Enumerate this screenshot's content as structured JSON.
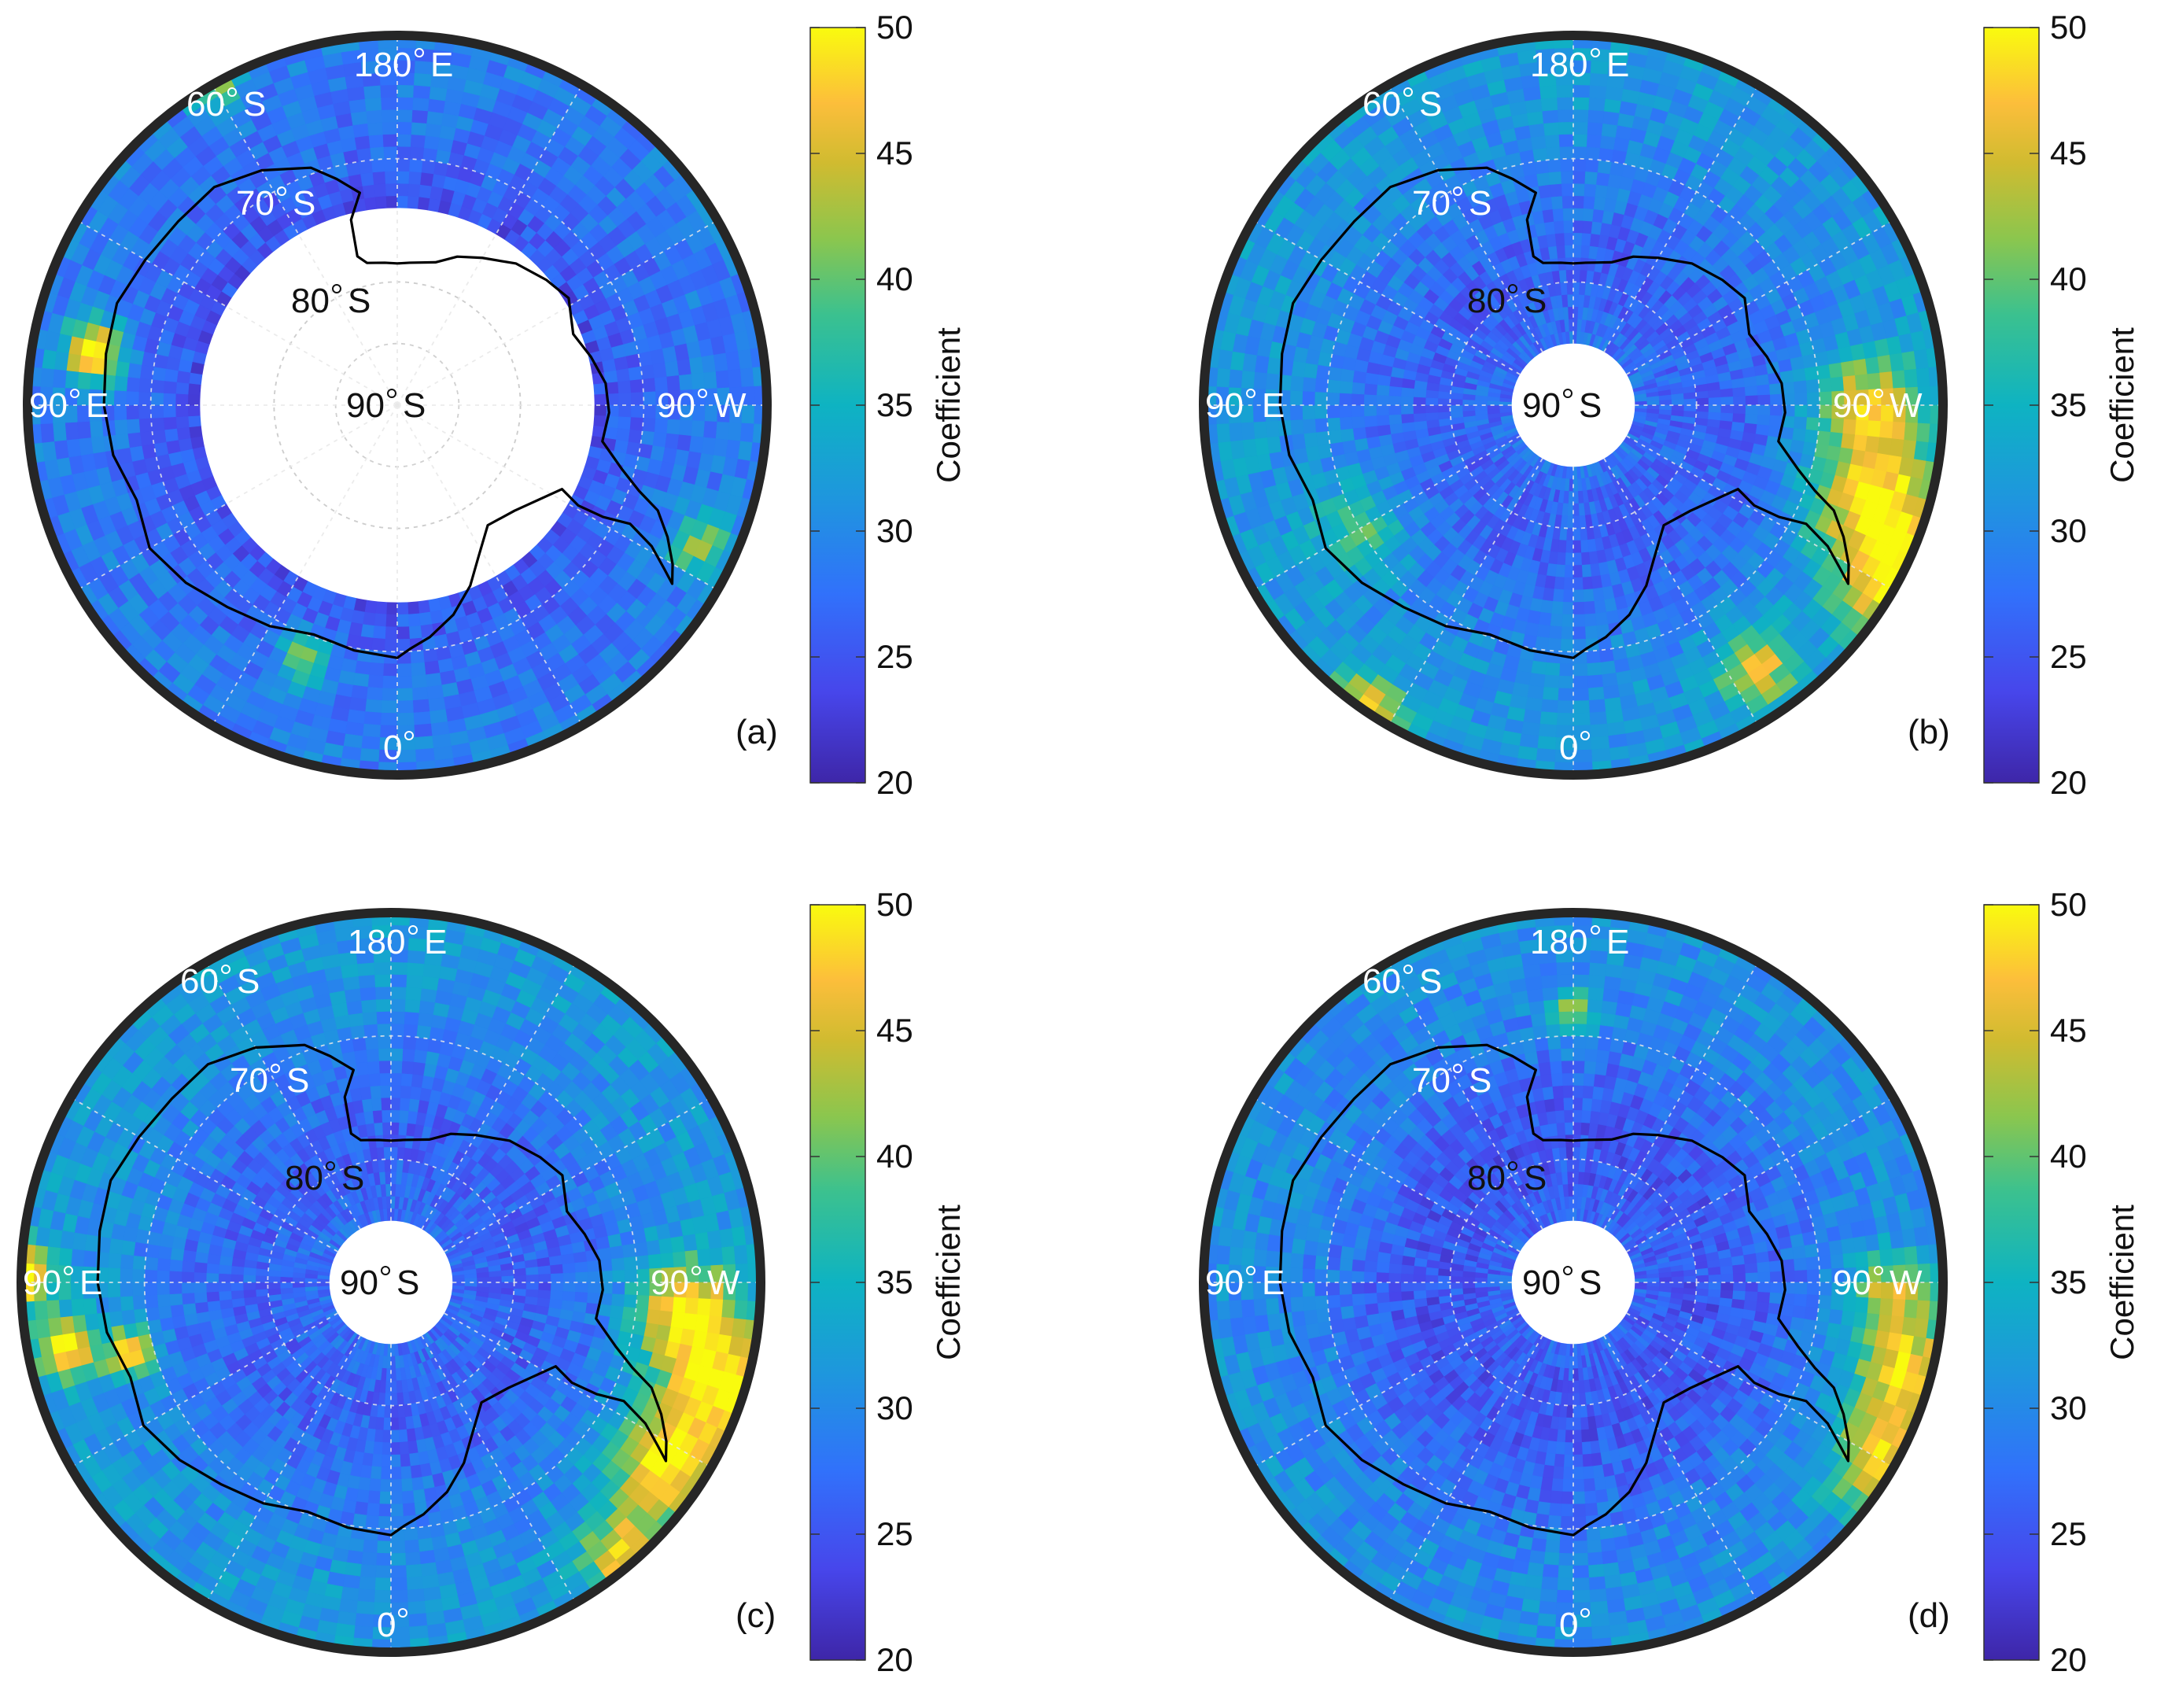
{
  "figure": {
    "colormap": "parula",
    "color_range": [
      20,
      50
    ],
    "colors": {
      "low": "#3e26a8",
      "mid_low": "#2a8df0",
      "mid": "#22bdc0",
      "mid_high": "#7fcc55",
      "high_orange": "#fdb62e",
      "high": "#f9fb0e",
      "frame": "#262626",
      "gridline": "#e8e8e8"
    }
  },
  "colorbar": {
    "label": "Coefficient",
    "ticks": [
      "20",
      "25",
      "30",
      "35",
      "40",
      "45",
      "50"
    ]
  },
  "map_labels": {
    "lon_180": "180",
    "lon_180_suffix": "E",
    "lon_0": "0",
    "lon_90e": "90",
    "lon_90e_suffix": "E",
    "lon_90w": "90",
    "lon_90w_suffix": "W",
    "lat_60": "60",
    "lat_70": "70",
    "lat_80": "80",
    "lat_90": "90",
    "lat_suffix": "S"
  },
  "panels": [
    {
      "id": "a",
      "label": "(a)",
      "blank_pole_radius_deg": 16,
      "base_value": 26,
      "hotspots": [
        {
          "lat": -65,
          "lon": 100,
          "value": 48,
          "size_deg": 2.5
        },
        {
          "lat": -60,
          "lon": 150,
          "value": 38,
          "size_deg": 2
        },
        {
          "lat": -68,
          "lon": 20,
          "value": 40,
          "size_deg": 2
        },
        {
          "lat": -63,
          "lon": -65,
          "value": 40,
          "size_deg": 2.5
        }
      ]
    },
    {
      "id": "b",
      "label": "(b)",
      "blank_pole_radius_deg": 5,
      "base_value": 29,
      "hotspots": [
        {
          "lat": -64,
          "lon": -72,
          "value": 48,
          "size_deg": 5
        },
        {
          "lat": -60,
          "lon": -60,
          "value": 47,
          "size_deg": 4
        },
        {
          "lat": -66,
          "lon": -90,
          "value": 44,
          "size_deg": 4
        },
        {
          "lat": -64,
          "lon": -35,
          "value": 44,
          "size_deg": 3
        },
        {
          "lat": -60,
          "lon": 35,
          "value": 44,
          "size_deg": 3
        },
        {
          "lat": -70,
          "lon": 60,
          "value": 38,
          "size_deg": 4
        }
      ]
    },
    {
      "id": "c",
      "label": "(c)",
      "blank_pole_radius_deg": 5,
      "base_value": 29,
      "hotspots": [
        {
          "lat": -62,
          "lon": -72,
          "value": 48,
          "size_deg": 5
        },
        {
          "lat": -66,
          "lon": -85,
          "value": 46,
          "size_deg": 4
        },
        {
          "lat": -63,
          "lon": -55,
          "value": 46,
          "size_deg": 4
        },
        {
          "lat": -61,
          "lon": -40,
          "value": 45,
          "size_deg": 3
        },
        {
          "lat": -60,
          "lon": 91,
          "value": 48,
          "size_deg": 2.5
        },
        {
          "lat": -63,
          "lon": 78,
          "value": 47,
          "size_deg": 2.5
        },
        {
          "lat": -68,
          "lon": 75,
          "value": 46,
          "size_deg": 2
        }
      ]
    },
    {
      "id": "d",
      "label": "(d)",
      "blank_pole_radius_deg": 5,
      "base_value": 28,
      "hotspots": [
        {
          "lat": -62,
          "lon": -75,
          "value": 46,
          "size_deg": 4
        },
        {
          "lat": -61,
          "lon": -60,
          "value": 45,
          "size_deg": 4
        },
        {
          "lat": -64,
          "lon": -88,
          "value": 42,
          "size_deg": 3
        },
        {
          "lat": -68,
          "lon": 180,
          "value": 40,
          "size_deg": 2
        }
      ]
    }
  ]
}
